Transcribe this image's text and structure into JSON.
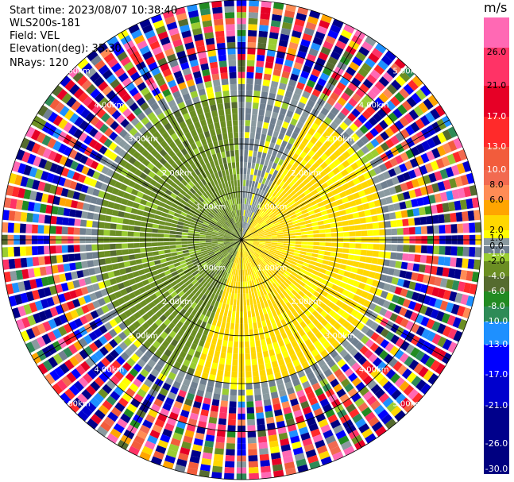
{
  "header": {
    "start_time": "Start time: 2023/08/07 10:38:40",
    "instrument": "WLS200s-181",
    "field": "Field: VEL",
    "elevation": "Elevation(deg): 35.30",
    "nrays": "NRays: 120"
  },
  "colorbar": {
    "unit": "m/s",
    "bins": [
      {
        "low": 26.0,
        "high": 30.0,
        "color": "#ff69b4"
      },
      {
        "low": 21.0,
        "high": 26.0,
        "color": "#ff3366"
      },
      {
        "low": 17.0,
        "high": 21.0,
        "color": "#e60026"
      },
      {
        "low": 13.0,
        "high": 17.0,
        "color": "#ff2a2a"
      },
      {
        "low": 10.0,
        "high": 13.0,
        "color": "#f25c3c"
      },
      {
        "low": 8.0,
        "high": 10.0,
        "color": "#f26a50"
      },
      {
        "low": 6.0,
        "high": 8.0,
        "color": "#ff8c55"
      },
      {
        "low": 4.0,
        "high": 6.0,
        "color": "#ffa500"
      },
      {
        "low": 2.0,
        "high": 4.0,
        "color": "#ffd700"
      },
      {
        "low": 1.0,
        "high": 2.0,
        "color": "#ffff00"
      },
      {
        "low": 0.0,
        "high": 1.0,
        "color": "#8a9aa0"
      },
      {
        "low": -1.0,
        "high": 0.0,
        "color": "#708090"
      },
      {
        "low": -2.0,
        "high": -1.0,
        "color": "#9acd32"
      },
      {
        "low": -4.0,
        "high": -2.0,
        "color": "#6b8e23"
      },
      {
        "low": -6.0,
        "high": -4.0,
        "color": "#556b2f"
      },
      {
        "low": -8.0,
        "high": -6.0,
        "color": "#228b22"
      },
      {
        "low": -10.0,
        "high": -8.0,
        "color": "#2e8b57"
      },
      {
        "low": -13.0,
        "high": -10.0,
        "color": "#1e90ff"
      },
      {
        "low": -17.0,
        "high": -13.0,
        "color": "#0000ff"
      },
      {
        "low": -21.0,
        "high": -17.0,
        "color": "#0000cd"
      },
      {
        "low": -26.0,
        "high": -21.0,
        "color": "#00008b"
      },
      {
        "low": -30.0,
        "high": -26.0,
        "color": "#000080"
      }
    ],
    "tick_labels": [
      "26.0",
      "21.0",
      "17.0",
      "13.0",
      "10.0",
      "8.0",
      "6.0",
      "2.0",
      "1.0",
      "0.0",
      "-1.0",
      "-2.0",
      "-4.0",
      "-6.0",
      "-8.0",
      "-10.0",
      "-13.0",
      "-17.0",
      "-21.0",
      "-26.0",
      "-30.0"
    ],
    "tick_values": [
      26,
      21,
      17,
      13,
      10,
      8,
      6,
      2,
      1,
      0,
      -1,
      -2,
      -4,
      -6,
      -8,
      -10,
      -13,
      -17,
      -21,
      -26,
      -30
    ]
  },
  "chart_data": {
    "type": "heatmap",
    "projection": "polar PPI",
    "field": "VEL",
    "units": "m/s",
    "nrays": 120,
    "max_range_km": 5.0,
    "value_range": [
      -30,
      30
    ],
    "range_rings_km": [
      1.0,
      2.0,
      3.0,
      4.0,
      5.0
    ],
    "range_ring_labels": [
      "1.00km",
      "2.00km",
      "3.00km",
      "4.00km",
      "5.00km"
    ],
    "spoke_azimuths_deg": [
      0,
      30,
      60,
      90,
      120,
      150,
      180,
      210,
      240,
      270,
      300,
      330
    ],
    "velocity_structure": [
      {
        "azimuth_sector_deg": [
          200,
          360
        ],
        "range_km": [
          0.0,
          3.2
        ],
        "value_mps": -3.0,
        "description": "negative (green) velocities, upper-left half"
      },
      {
        "azimuth_sector_deg": [
          30,
          200
        ],
        "range_km": [
          0.0,
          3.2
        ],
        "value_mps": 2.5,
        "description": "positive (yellow) velocities, lower-right half"
      },
      {
        "azimuth_sector_deg": [
          0,
          360
        ],
        "range_km": [
          3.0,
          3.4
        ],
        "value_mps": 0.0,
        "description": "near-zero (grey) band along the zero-isodop"
      },
      {
        "azimuth_sector_deg": [
          0,
          360
        ],
        "range_km": [
          3.4,
          5.0
        ],
        "value_mps": null,
        "description": "noise (random values) at far ranges"
      }
    ]
  }
}
